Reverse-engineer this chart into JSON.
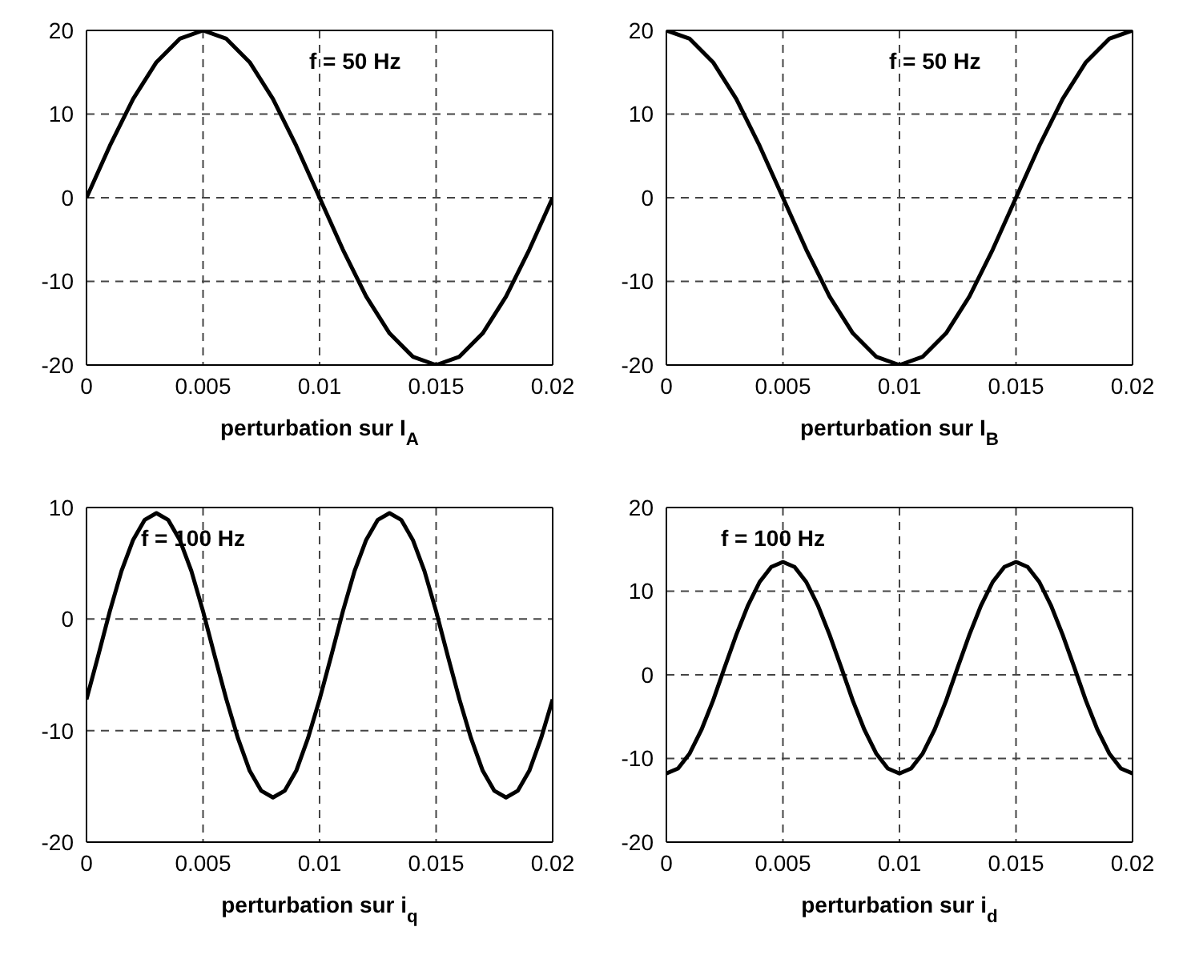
{
  "chart_data": [
    {
      "type": "line",
      "xlabel": "perturbation sur I$_{A}$",
      "annotations": [
        "f = 50 Hz"
      ],
      "x": [
        0,
        0.001,
        0.002,
        0.003,
        0.004,
        0.005,
        0.006,
        0.007,
        0.008,
        0.009,
        0.01,
        0.011,
        0.012,
        0.013,
        0.014,
        0.015,
        0.016,
        0.017,
        0.018,
        0.019,
        0.02
      ],
      "series": [
        {
          "color": "#000000",
          "values": [
            0,
            6.2,
            11.8,
            16.2,
            19,
            20,
            19,
            16.2,
            11.8,
            6.2,
            0,
            -6.2,
            -11.8,
            -16.2,
            -19,
            -20,
            -19,
            -16.2,
            -11.8,
            -6.2,
            0
          ]
        }
      ],
      "xlim": [
        0,
        0.02
      ],
      "xticks": [
        0,
        0.005,
        0.01,
        0.015,
        0.02
      ],
      "ylim": [
        -20,
        20
      ],
      "yticks": [
        -20,
        -10,
        0,
        10,
        20
      ],
      "grid": true,
      "line_style": "solid",
      "marker": "none"
    },
    {
      "type": "line",
      "xlabel": "perturbation sur I$_{B}$",
      "annotations": [
        "f = 50 Hz"
      ],
      "x": [
        0,
        0.001,
        0.002,
        0.003,
        0.004,
        0.005,
        0.006,
        0.007,
        0.008,
        0.009,
        0.01,
        0.011,
        0.012,
        0.013,
        0.014,
        0.015,
        0.016,
        0.017,
        0.018,
        0.019,
        0.02
      ],
      "series": [
        {
          "color": "#000000",
          "values": [
            20,
            19,
            16.2,
            11.8,
            6.2,
            0,
            -6.2,
            -11.8,
            -16.2,
            -19,
            -20,
            -19,
            -16.2,
            -11.8,
            -6.2,
            0,
            6.2,
            11.8,
            16.2,
            19,
            20
          ]
        }
      ],
      "xlim": [
        0,
        0.02
      ],
      "xticks": [
        0,
        0.005,
        0.01,
        0.015,
        0.02
      ],
      "ylim": [
        -20,
        20
      ],
      "yticks": [
        -20,
        -10,
        0,
        10,
        20
      ],
      "grid": true,
      "line_style": "solid",
      "marker": "none"
    },
    {
      "type": "line",
      "xlabel": "perturbation sur i$_{q}$",
      "annotations": [
        "f = 100 Hz"
      ],
      "x": [
        0,
        0.0005,
        0.001,
        0.0015,
        0.002,
        0.0025,
        0.003,
        0.0035,
        0.004,
        0.0045,
        0.005,
        0.0055,
        0.006,
        0.0065,
        0.007,
        0.0075,
        0.008,
        0.0085,
        0.009,
        0.0095,
        0.01,
        0.0105,
        0.011,
        0.0115,
        0.012,
        0.0125,
        0.013,
        0.0135,
        0.014,
        0.0145,
        0.015,
        0.0155,
        0.016,
        0.0165,
        0.017,
        0.0175,
        0.018,
        0.0185,
        0.019,
        0.0195,
        0.02
      ],
      "series": [
        {
          "color": "#000000",
          "values": [
            -7.2,
            -3.3,
            0.7,
            4.3,
            7.1,
            8.9,
            9.5,
            8.9,
            7.1,
            4.3,
            0.7,
            -3.3,
            -7.2,
            -10.7,
            -13.6,
            -15.4,
            -16,
            -15.4,
            -13.6,
            -10.7,
            -7.2,
            -3.3,
            0.7,
            4.3,
            7.1,
            8.9,
            9.5,
            8.9,
            7.1,
            4.3,
            0.7,
            -3.3,
            -7.2,
            -10.7,
            -13.6,
            -15.4,
            -16,
            -15.4,
            -13.6,
            -10.7,
            -7.2
          ]
        }
      ],
      "xlim": [
        0,
        0.02
      ],
      "xticks": [
        0,
        0.005,
        0.01,
        0.015,
        0.02
      ],
      "ylim": [
        -20,
        10
      ],
      "yticks": [
        -20,
        -10,
        0,
        10
      ],
      "grid": true,
      "line_style": "solid",
      "marker": "none"
    },
    {
      "type": "line",
      "xlabel": "perturbation sur i$_{d}$",
      "annotations": [
        "f = 100 Hz"
      ],
      "x": [
        0,
        0.0005,
        0.001,
        0.0015,
        0.002,
        0.0025,
        0.003,
        0.0035,
        0.004,
        0.0045,
        0.005,
        0.0055,
        0.006,
        0.0065,
        0.007,
        0.0075,
        0.008,
        0.0085,
        0.009,
        0.0095,
        0.01,
        0.0105,
        0.011,
        0.0115,
        0.012,
        0.0125,
        0.013,
        0.0135,
        0.014,
        0.0145,
        0.015,
        0.0155,
        0.016,
        0.0165,
        0.017,
        0.0175,
        0.018,
        0.0185,
        0.019,
        0.0195,
        0.02
      ],
      "series": [
        {
          "color": "#000000",
          "values": [
            -11.8,
            -11.2,
            -9.4,
            -6.6,
            -3.1,
            0.9,
            4.8,
            8.3,
            11.1,
            12.9,
            13.5,
            12.9,
            11.1,
            8.3,
            4.8,
            0.9,
            -3.1,
            -6.6,
            -9.4,
            -11.2,
            -11.8,
            -11.2,
            -9.4,
            -6.6,
            -3.1,
            0.9,
            4.8,
            8.3,
            11.1,
            12.9,
            13.5,
            12.9,
            11.1,
            8.3,
            4.8,
            0.9,
            -3.1,
            -6.6,
            -9.4,
            -11.2,
            -11.8
          ]
        }
      ],
      "xlim": [
        0,
        0.02
      ],
      "xticks": [
        0,
        0.005,
        0.01,
        0.015,
        0.02
      ],
      "ylim": [
        -20,
        20
      ],
      "yticks": [
        -20,
        -10,
        0,
        10,
        20
      ],
      "grid": true,
      "line_style": "solid",
      "marker": "none"
    }
  ]
}
